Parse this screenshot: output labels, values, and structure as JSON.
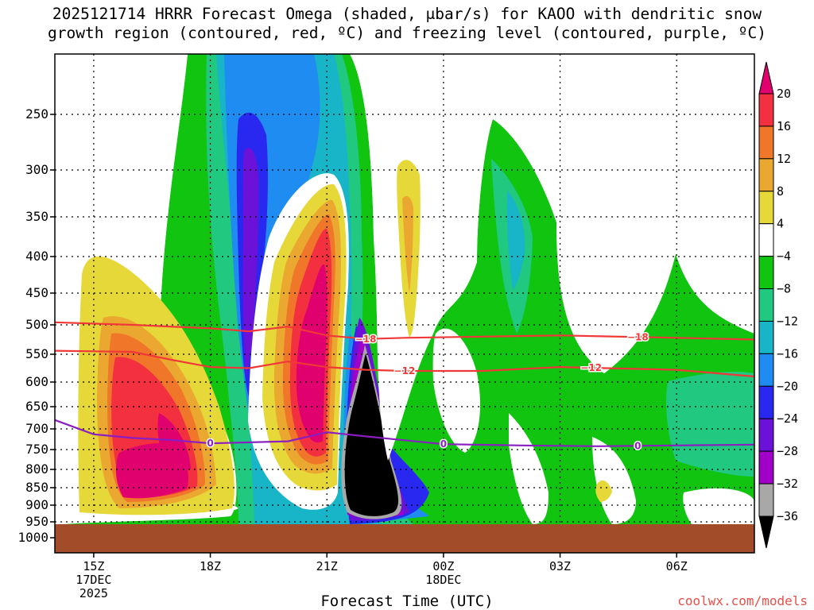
{
  "title": {
    "line1": "2025121714 HRRR Forecast Omega (shaded, μbar/s) for KAOO with dendritic snow",
    "line2": "growth region (contoured, red, ºC) and freezing level (contoured, purple, ºC)"
  },
  "credit": "coolwx.com/models",
  "chart_data": {
    "type": "heatmap",
    "title": "2025121714 HRRR Forecast Omega (shaded, μbar/s) for KAOO with dendritic snow growth region (contoured, red, ºC) and freezing level (contoured, purple, ºC)",
    "xlabel": "Forecast Time (UTC)",
    "ylabel": "",
    "x_ticks": [
      {
        "label": "15Z",
        "sub": [
          "17DEC",
          "2025"
        ],
        "hour": 15
      },
      {
        "label": "18Z",
        "sub": [],
        "hour": 18
      },
      {
        "label": "21Z",
        "sub": [],
        "hour": 21
      },
      {
        "label": "00Z",
        "sub": [
          "18DEC"
        ],
        "hour": 24
      },
      {
        "label": "03Z",
        "sub": [],
        "hour": 27
      },
      {
        "label": "06Z",
        "sub": [],
        "hour": 30
      }
    ],
    "xlim_hours": [
      14,
      32
    ],
    "y_ticks": [
      250,
      300,
      350,
      400,
      450,
      500,
      550,
      600,
      650,
      700,
      750,
      800,
      850,
      900,
      950,
      1000
    ],
    "ylim_hpa": [
      200,
      1040
    ],
    "grid": true,
    "colorbar": {
      "labels": [
        "20",
        "16",
        "12",
        "8",
        "4",
        "−4",
        "−8",
        "−12",
        "−16",
        "−20",
        "−24",
        "−28",
        "−32",
        "−36"
      ],
      "colors": [
        "#e0006e",
        "#f2303f",
        "#f0762a",
        "#eba830",
        "#e7d83a",
        "#ffffff",
        "#10c410",
        "#20c880",
        "#18b4c8",
        "#1e8cf0",
        "#2828f0",
        "#6c12d8",
        "#a000c8",
        "#a8a8a8",
        "#000000"
      ]
    },
    "fields": [
      {
        "name": "omega-ascent-core",
        "value": -36,
        "color": "#000000",
        "time_hours": [
          21.7,
          23.1
        ],
        "pressure_range": [
          560,
          940
        ]
      },
      {
        "name": "omega-ascent-upper",
        "value": -28,
        "color": "#a000c8",
        "time_hours": [
          18.7,
          19.3
        ],
        "pressure_range": [
          280,
          470
        ]
      },
      {
        "name": "omega-descent-1",
        "value": 20,
        "color": "#e0006e",
        "time_hours": [
          15.4,
          17.6
        ],
        "pressure_range": [
          690,
          890
        ]
      },
      {
        "name": "omega-descent-2",
        "value": 20,
        "color": "#e0006e",
        "time_hours": [
          19.8,
          20.8
        ],
        "pressure_range": [
          460,
          800
        ]
      }
    ],
    "contours": [
      {
        "name": "dendritic-top",
        "label": "−18",
        "color": "#f03838",
        "points": [
          [
            14,
            496
          ],
          [
            16,
            500
          ],
          [
            18,
            506
          ],
          [
            19,
            511
          ],
          [
            20,
            503
          ],
          [
            21,
            518
          ],
          [
            22,
            524
          ],
          [
            23,
            522
          ],
          [
            25,
            520
          ],
          [
            27,
            518
          ],
          [
            30,
            522
          ],
          [
            32,
            525
          ]
        ]
      },
      {
        "name": "dendritic-bottom",
        "label": "−12",
        "color": "#f03838",
        "points": [
          [
            14,
            544
          ],
          [
            16,
            546
          ],
          [
            17,
            560
          ],
          [
            18,
            573
          ],
          [
            19,
            575
          ],
          [
            20,
            563
          ],
          [
            21,
            573
          ],
          [
            22,
            578
          ],
          [
            23,
            580
          ],
          [
            25,
            580
          ],
          [
            27,
            573
          ],
          [
            30,
            578
          ],
          [
            32,
            590
          ]
        ]
      },
      {
        "name": "freezing-level",
        "label": "0",
        "color": "#8a1ec0",
        "points": [
          [
            14,
            680
          ],
          [
            15,
            713
          ],
          [
            16,
            722
          ],
          [
            17,
            727
          ],
          [
            18,
            735
          ],
          [
            20,
            730
          ],
          [
            21,
            708
          ],
          [
            22,
            718
          ],
          [
            24,
            737
          ],
          [
            26,
            740
          ],
          [
            28,
            742
          ],
          [
            30,
            740
          ],
          [
            32,
            738
          ]
        ]
      }
    ]
  }
}
